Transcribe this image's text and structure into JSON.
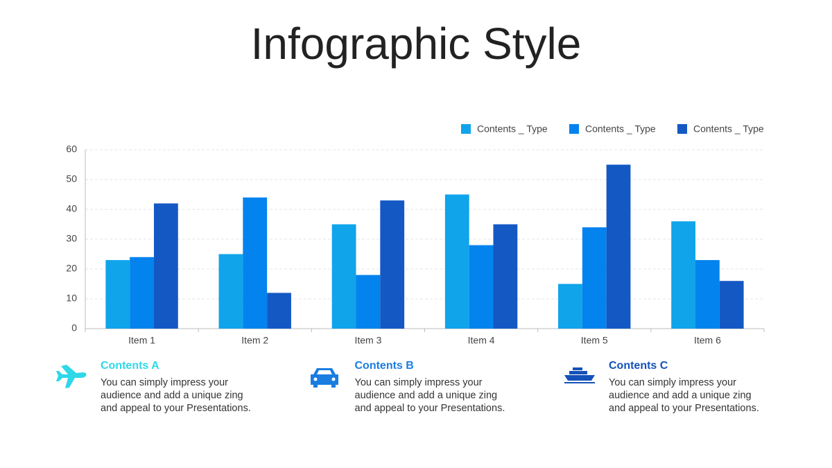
{
  "chart_data": {
    "type": "bar",
    "title": "Infographic Style",
    "categories": [
      "Item 1",
      "Item 2",
      "Item 3",
      "Item 4",
      "Item 5",
      "Item 6"
    ],
    "series": [
      {
        "name": "Contents _ Type",
        "color": "#10a4ea",
        "values": [
          23,
          25,
          35,
          45,
          15,
          36
        ]
      },
      {
        "name": "Contents _ Type",
        "color": "#0383ee",
        "values": [
          24,
          44,
          18,
          28,
          34,
          23
        ]
      },
      {
        "name": "Contents _ Type",
        "color": "#1458c4",
        "values": [
          42,
          12,
          43,
          35,
          55,
          16
        ]
      }
    ],
    "ylim": [
      0,
      60
    ],
    "yticks": [
      0,
      10,
      20,
      30,
      40,
      50,
      60
    ],
    "grid": true,
    "legend": "top-right"
  },
  "features": [
    {
      "title": "Contents A",
      "color": "#2ed8e8",
      "lines": [
        "You can simply impress your",
        "audience and add a unique zing",
        "and appeal to your Presentations."
      ]
    },
    {
      "title": "Contents B",
      "color": "#1a7de0",
      "lines": [
        "You can simply impress your",
        "audience and add a unique zing",
        "and appeal to your Presentations."
      ]
    },
    {
      "title": "Contents C",
      "color": "#1451b8",
      "lines": [
        "You can simply impress your",
        "audience and add a unique zing",
        "and appeal to your Presentations."
      ]
    }
  ]
}
